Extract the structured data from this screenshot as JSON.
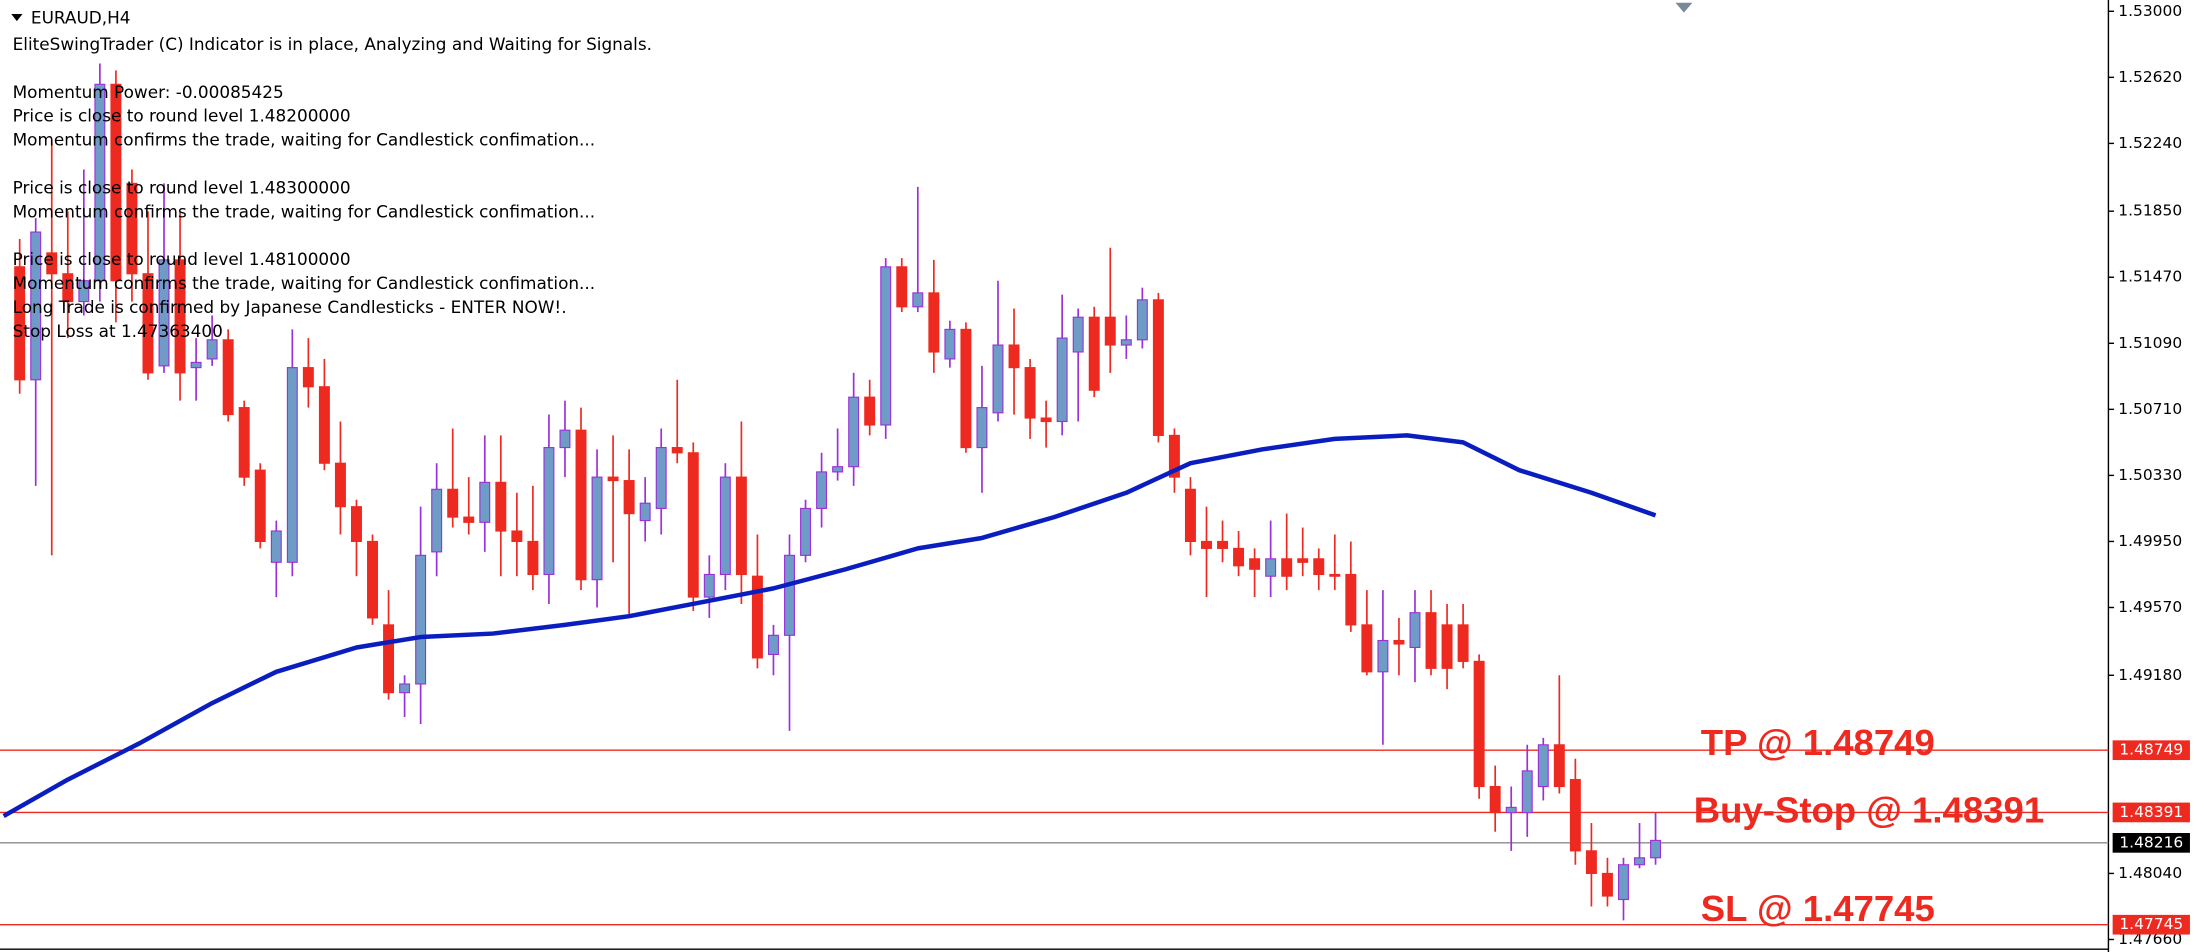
{
  "header": {
    "symbol": "EURAUD,H4",
    "lines": [
      "EliteSwingTrader (C) Indicator is in place, Analyzing and Waiting for Signals.",
      "Momentum Power: -0.00085425",
      "Price is close to round level 1.48200000",
      "Momentum confirms the trade, waiting for Candlestick confimation...",
      "Price is close to round level 1.48300000",
      "Momentum confirms the trade, waiting for Candlestick confimation...",
      "Price is close to round level 1.48100000",
      "Momentum confirms the trade, waiting for Candlestick confimation...",
      "Long Trade is confirmed by Japanese Candlesticks - ENTER NOW!.",
      "Stop Loss at 1.47363400"
    ]
  },
  "chart_data": {
    "type": "candlestick",
    "up_color": "#6e9cc6",
    "up_wick_color": "#9b30d9",
    "down_color": "#ee2a20",
    "open": [
      1.5153,
      1.5088,
      1.5161,
      1.5149,
      1.5133,
      1.5145,
      1.5258,
      1.5201,
      1.5149,
      1.5096,
      1.5157,
      1.5095,
      1.51,
      1.5111,
      1.5072,
      1.5036,
      1.4983,
      1.4983,
      1.5095,
      1.5084,
      1.504,
      1.5015,
      1.4995,
      1.4947,
      1.4908,
      1.4913,
      1.4989,
      1.5025,
      1.5009,
      1.5006,
      1.5029,
      1.5001,
      1.4995,
      1.4976,
      1.5049,
      1.5059,
      1.4973,
      1.5032,
      1.503,
      1.5007,
      1.5014,
      1.5049,
      1.5046,
      1.4963,
      1.4976,
      1.5032,
      1.4975,
      1.493,
      1.4941,
      1.4987,
      1.5014,
      1.5035,
      1.5038,
      1.5078,
      1.5062,
      1.5153,
      1.513,
      1.5138,
      1.51,
      1.5117,
      1.5049,
      1.5069,
      1.5108,
      1.5095,
      1.5066,
      1.5064,
      1.5104,
      1.5124,
      1.5124,
      1.5108,
      1.5111,
      1.5134,
      1.5056,
      1.5025,
      1.4995,
      1.4995,
      1.4991,
      1.4985,
      1.4975,
      1.4985,
      1.4985,
      1.4985,
      1.4976,
      1.4976,
      1.4947,
      1.492,
      1.4938,
      1.4934,
      1.4954,
      1.4947,
      1.4947,
      1.4926,
      1.4854,
      1.4839,
      1.4839,
      1.4854,
      1.4878,
      1.4858,
      1.4817,
      1.4804,
      1.4789,
      1.4809,
      1.4813
    ],
    "high": [
      1.5169,
      1.5181,
      1.5226,
      1.5185,
      1.5209,
      1.527,
      1.5266,
      1.5209,
      1.5185,
      1.5201,
      1.5185,
      1.5112,
      1.5125,
      1.5117,
      1.5076,
      1.504,
      1.5007,
      1.5117,
      1.5112,
      1.51,
      1.5064,
      1.5019,
      1.4999,
      1.4967,
      1.4918,
      1.5015,
      1.504,
      1.506,
      1.5032,
      1.5056,
      1.5056,
      1.5023,
      1.5027,
      1.5068,
      1.5076,
      1.5072,
      1.5048,
      1.5056,
      1.5048,
      1.5032,
      1.506,
      1.5088,
      1.5052,
      1.4987,
      1.504,
      1.5064,
      1.4999,
      1.4947,
      1.4999,
      1.5019,
      1.5046,
      1.506,
      1.5092,
      1.5088,
      1.5158,
      1.5158,
      1.5199,
      1.5157,
      1.5122,
      1.5121,
      1.5096,
      1.5145,
      1.5129,
      1.51,
      1.5076,
      1.5137,
      1.5129,
      1.513,
      1.5164,
      1.5125,
      1.5141,
      1.5138,
      1.506,
      1.5032,
      1.5015,
      1.5007,
      1.5001,
      1.4991,
      1.5007,
      1.5011,
      1.5003,
      1.4991,
      1.4999,
      1.4995,
      1.4967,
      1.4967,
      1.4951,
      1.4967,
      1.4967,
      1.4959,
      1.4959,
      1.493,
      1.4866,
      1.4854,
      1.4878,
      1.4882,
      1.4918,
      1.487,
      1.4833,
      1.4813,
      1.4813,
      1.4833,
      1.4839
    ],
    "low": [
      1.508,
      1.5027,
      1.4987,
      1.5112,
      1.5125,
      1.5133,
      1.5121,
      1.5133,
      1.5088,
      1.5092,
      1.5076,
      1.5076,
      1.5096,
      1.5064,
      1.5027,
      1.4991,
      1.4963,
      1.4975,
      1.5072,
      1.5036,
      1.4999,
      1.4975,
      1.4947,
      1.4904,
      1.4894,
      1.489,
      1.4975,
      1.5003,
      1.4999,
      1.4989,
      1.4975,
      1.4975,
      1.4967,
      1.4959,
      1.5032,
      1.4967,
      1.4957,
      1.4983,
      1.4951,
      1.4995,
      1.4999,
      1.504,
      1.4955,
      1.4951,
      1.4967,
      1.4959,
      1.4922,
      1.4918,
      1.4886,
      1.4983,
      1.5003,
      1.503,
      1.5027,
      1.5056,
      1.5054,
      1.5127,
      1.5127,
      1.5092,
      1.5095,
      1.5046,
      1.5023,
      1.5064,
      1.5068,
      1.5054,
      1.5049,
      1.5056,
      1.5064,
      1.5078,
      1.5092,
      1.51,
      1.5106,
      1.5052,
      1.5023,
      1.4987,
      1.4963,
      1.4983,
      1.4975,
      1.4963,
      1.4963,
      1.4967,
      1.4975,
      1.4967,
      1.4967,
      1.4943,
      1.4918,
      1.4878,
      1.4918,
      1.4914,
      1.4918,
      1.491,
      1.4922,
      1.4847,
      1.4828,
      1.4817,
      1.4825,
      1.4846,
      1.485,
      1.4809,
      1.4785,
      1.4785,
      1.4777,
      1.4807,
      1.4809
    ],
    "close": [
      1.5088,
      1.5173,
      1.5149,
      1.5133,
      1.5145,
      1.5258,
      1.5145,
      1.5149,
      1.5092,
      1.5157,
      1.5092,
      1.5098,
      1.5111,
      1.5068,
      1.5032,
      1.4995,
      1.5001,
      1.5095,
      1.5084,
      1.504,
      1.5015,
      1.4995,
      1.4951,
      1.4908,
      1.4913,
      1.4987,
      1.5025,
      1.5009,
      1.5006,
      1.5029,
      1.5001,
      1.4995,
      1.4976,
      1.5049,
      1.5059,
      1.4973,
      1.5032,
      1.503,
      1.5011,
      1.5017,
      1.5049,
      1.5046,
      1.4963,
      1.4976,
      1.5032,
      1.4976,
      1.4928,
      1.4941,
      1.4987,
      1.5014,
      1.5035,
      1.5038,
      1.5078,
      1.5062,
      1.5153,
      1.513,
      1.5138,
      1.5104,
      1.5117,
      1.5049,
      1.5072,
      1.5108,
      1.5095,
      1.5066,
      1.5064,
      1.5112,
      1.5124,
      1.5082,
      1.5108,
      1.5111,
      1.5134,
      1.5056,
      1.5032,
      1.4995,
      1.4991,
      1.4991,
      1.4981,
      1.4979,
      1.4985,
      1.4975,
      1.4983,
      1.4976,
      1.4975,
      1.4947,
      1.492,
      1.4938,
      1.4936,
      1.4954,
      1.4922,
      1.4922,
      1.4926,
      1.4854,
      1.4839,
      1.4842,
      1.4863,
      1.4878,
      1.4854,
      1.4817,
      1.4804,
      1.4791,
      1.4809,
      1.4813,
      1.4823
    ],
    "moving_average": {
      "color": "#0a1ec0",
      "x": [
        -1,
        3,
        7.5,
        12,
        16,
        21,
        25,
        29.5,
        34,
        38,
        42.5,
        47,
        51.5,
        56,
        60,
        64.5,
        69,
        73,
        77.5,
        82,
        86.5,
        90,
        93.5,
        98,
        102
      ],
      "values": [
        1.4837,
        1.4858,
        1.4879,
        1.4902,
        1.492,
        1.4934,
        1.494,
        1.4942,
        1.4947,
        1.4952,
        1.496,
        1.4968,
        1.4979,
        1.4991,
        1.4997,
        1.5009,
        1.5023,
        1.504,
        1.5048,
        1.5054,
        1.5056,
        1.5052,
        1.5036,
        1.5023,
        1.501
      ]
    },
    "levels": [
      {
        "label": "TP @ 1.48749",
        "value": 1.48749,
        "color": "#ee2a20"
      },
      {
        "label": "Buy-Stop @ 1.48391",
        "value": 1.48391,
        "color": "#ee2a20"
      },
      {
        "label": "SL @ 1.47745",
        "value": 1.47745,
        "color": "#ee2a20"
      }
    ],
    "current_price": {
      "value": 1.48216,
      "color": "#8c8c8c"
    },
    "ylim": [
      1.47588,
      1.53065
    ],
    "yticks": [
      {
        "value": 1.53,
        "label": "1.53000"
      },
      {
        "value": 1.5262,
        "label": "1.52620"
      },
      {
        "value": 1.5224,
        "label": "1.52240"
      },
      {
        "value": 1.5185,
        "label": "1.51850"
      },
      {
        "value": 1.5147,
        "label": "1.51470"
      },
      {
        "value": 1.5109,
        "label": "1.51090"
      },
      {
        "value": 1.5071,
        "label": "1.50710"
      },
      {
        "value": 1.5033,
        "label": "1.50330"
      },
      {
        "value": 1.4995,
        "label": "1.49950"
      },
      {
        "value": 1.4957,
        "label": "1.49570"
      },
      {
        "value": 1.4918,
        "label": "1.49180"
      },
      {
        "value": 1.4804,
        "label": "1.48040"
      },
      {
        "value": 1.4766,
        "label": "1.47660"
      }
    ]
  }
}
